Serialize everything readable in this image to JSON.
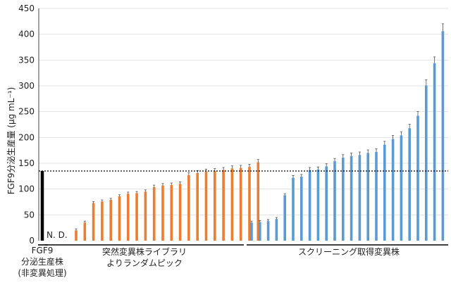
{
  "chart_data": {
    "type": "bar",
    "ylabel": "FGF9分泌生産量 (μg mL⁻¹)",
    "ylim": [
      0,
      450
    ],
    "yticks": [
      "0",
      "50",
      "100",
      "150",
      "200",
      "250",
      "300",
      "350",
      "400",
      "450"
    ],
    "grid": "horizontal",
    "reference_line": {
      "value": 135,
      "style": "dotted"
    },
    "groups": [
      {
        "name": "FGF9\n分泌生産株\n(非変異処理)",
        "label_lines": [
          "FGF9",
          "分泌生産株",
          "(非変異処理)"
        ],
        "color": "#000000",
        "values": [
          135
        ]
      },
      {
        "name": "突然変異株ライブラリ\nよりランダムピック",
        "label_lines": [
          "突然変異株ライブラリ",
          "よりランダムピック"
        ],
        "color": "#ed7d31",
        "nd_label": "N. D.",
        "nd_count": 2,
        "values": [
          20,
          35,
          73,
          76,
          79,
          86,
          91,
          92,
          95,
          104,
          107,
          108,
          110,
          127,
          131,
          134,
          135,
          137,
          140,
          141,
          143,
          152
        ]
      },
      {
        "name": "スクリーニング取得変異株",
        "label_lines": [
          "スクリーニング取得変異株"
        ],
        "color": "#5b9bd5",
        "values": [
          35,
          36,
          38,
          42,
          88,
          122,
          124,
          137,
          138,
          144,
          154,
          161,
          164,
          166,
          170,
          172,
          186,
          197,
          204,
          218,
          242,
          301,
          344,
          406
        ]
      }
    ]
  }
}
